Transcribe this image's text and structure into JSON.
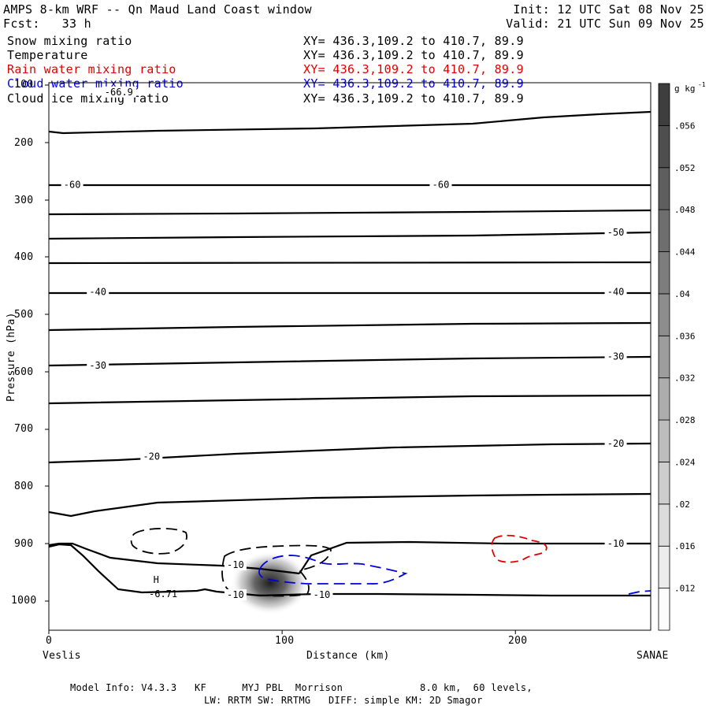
{
  "header": {
    "title": "AMPS 8-km WRF -- Qn Maud Land Coast window",
    "fcst": "Fcst:   33 h",
    "init": "Init: 12 UTC Sat 08 Nov 25",
    "valid": "Valid: 21 UTC Sun 09 Nov 25"
  },
  "fields": [
    {
      "name": "Snow mixing ratio",
      "xy": "XY= 436.3,109.2 to 410.7, 89.9",
      "color": "#000000"
    },
    {
      "name": "Temperature",
      "xy": "XY= 436.3,109.2 to 410.7, 89.9",
      "color": "#000000"
    },
    {
      "name": "Rain water mixing ratio",
      "xy": "XY= 436.3,109.2 to 410.7, 89.9",
      "color": "#e00000"
    },
    {
      "name": "Cloud water mixing ratio",
      "xy": "XY= 436.3,109.2 to 410.7, 89.9",
      "color": "#0000e0"
    },
    {
      "name": "Cloud ice mixing ratio",
      "xy": "XY= 436.3,109.2 to 410.7, 89.9",
      "color": "#000000"
    }
  ],
  "footer": {
    "line1": "Model Info: V4.3.3   KF      MYJ PBL  Morrison             8.0 km,  60 levels,",
    "line2": "LW: RRTM SW: RRTMG   DIFF: simple KM: 2D Smagor"
  },
  "chart_data": {
    "type": "cross-section contour",
    "xlabel": "Distance (km)",
    "ylabel": "Pressure (hPa)",
    "xlim": [
      0,
      258
    ],
    "ylim": [
      1050,
      100
    ],
    "x_ticks": [
      "0",
      "100",
      "200"
    ],
    "y_ticks": [
      "100",
      "200",
      "300",
      "400",
      "500",
      "600",
      "700",
      "800",
      "900",
      "1000"
    ],
    "left_endpoint": "Veslis",
    "right_endpoint": "SANAE",
    "colorbar": {
      "unit": "g kg",
      "unit_exponent": "-1",
      "labels": [
        ".012",
        ".016",
        ".02",
        ".024",
        ".028",
        ".032",
        ".036",
        ".04",
        ".044",
        ".048",
        ".052",
        ".056"
      ]
    },
    "temperature_labels": [
      {
        "text": "-66.9",
        "x": 30,
        "p": 112
      },
      {
        "text": "-60",
        "x": 10,
        "p": 273
      },
      {
        "text": "-60",
        "x": 168,
        "p": 273
      },
      {
        "text": "-50",
        "x": 243,
        "p": 357
      },
      {
        "text": "-40",
        "x": 21,
        "p": 461
      },
      {
        "text": "-40",
        "x": 243,
        "p": 461
      },
      {
        "text": "-30",
        "x": 21,
        "p": 589
      },
      {
        "text": "-30",
        "x": 243,
        "p": 573
      },
      {
        "text": "-20",
        "x": 44,
        "p": 748
      },
      {
        "text": "-20",
        "x": 243,
        "p": 725
      },
      {
        "text": "-10",
        "x": 243,
        "p": 900
      },
      {
        "text": "-10",
        "x": 80,
        "p": 937
      },
      {
        "text": "-10",
        "x": 80,
        "p": 989
      },
      {
        "text": "-10",
        "x": 117,
        "p": 989
      }
    ],
    "extremum_labels": [
      {
        "text": "H",
        "x": 46,
        "p": 963
      },
      {
        "text": "-6.71",
        "x": 49,
        "p": 988
      }
    ],
    "snow_max_location": {
      "x": 97,
      "p": 965
    }
  }
}
